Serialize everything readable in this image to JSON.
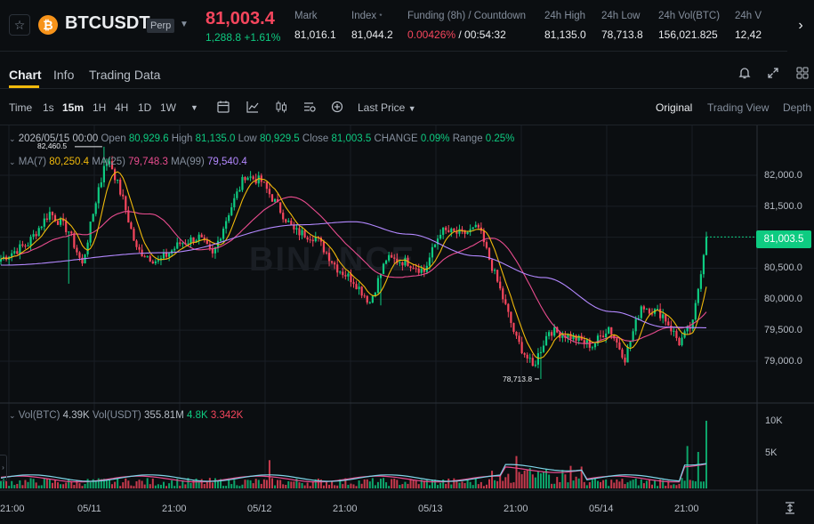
{
  "header": {
    "symbol": "BTCUSDT",
    "badge": "Perp",
    "last_price": "81,003.4",
    "change": "1,288.8 +1.61%",
    "stats": [
      {
        "label": "Mark",
        "value": "81,016.1"
      },
      {
        "label": "Index",
        "value": "81,044.2"
      },
      {
        "label": "Funding (8h) / Countdown",
        "value_rate": "0.00426%",
        "value_countdown": " / 00:54:32"
      },
      {
        "label": "24h High",
        "value": "81,135.0"
      },
      {
        "label": "24h Low",
        "value": "78,713.8"
      },
      {
        "label": "24h Vol(BTC)",
        "value": "156,021.825"
      },
      {
        "label": "24h V",
        "value": "12,42"
      }
    ]
  },
  "tabs": [
    "Chart",
    "Info",
    "Trading Data"
  ],
  "toolbar": {
    "time_label": "Time",
    "intervals": [
      "1s",
      "15m",
      "1H",
      "4H",
      "1D",
      "1W"
    ],
    "active_interval": "15m",
    "price_type": "Last Price",
    "views": [
      "Original",
      "Trading View",
      "Depth"
    ]
  },
  "legend": {
    "date": "2026/05/15 00:00",
    "open_label": "Open",
    "open": "80,929.6",
    "high_label": "High",
    "high": "81,135.0",
    "low_label": "Low",
    "low": "80,929.5",
    "close_label": "Close",
    "close": "81,003.5",
    "change_label": "CHANGE",
    "change": "0.09%",
    "range_label": "Range",
    "range": "0.25%",
    "ma7_label": "MA(7)",
    "ma7": "80,250.4",
    "ma25_label": "MA(25)",
    "ma25": "79,748.3",
    "ma99_label": "MA(99)",
    "ma99": "79,540.4",
    "vol_label": "Vol(BTC)",
    "vol_btc": "4.39K",
    "vol_usdt_label": "Vol(USDT)",
    "vol_usdt": "355.81M",
    "vol_ma1": "4.8K",
    "vol_ma2": "3.342K"
  },
  "price_axis": [
    "82,000.0",
    "81,500.0",
    "81,000.0",
    "80,500.0",
    "80,000.0",
    "79,500.0",
    "79,000.0"
  ],
  "current_price_tag": "81,003.5",
  "volume_axis": [
    "10K",
    "5K"
  ],
  "time_axis": [
    "21:00",
    "05/11",
    "21:00",
    "05/12",
    "21:00",
    "05/13",
    "21:00",
    "05/14",
    "21:00"
  ],
  "markers": {
    "high": "82,460.5",
    "low": "78,713.8"
  },
  "watermark": "BINANCE",
  "colors": {
    "up": "#0ecb81",
    "down": "#f6465d",
    "accent": "#f0b90b",
    "ma7": "#f0b90b",
    "ma25": "#e84c8e",
    "ma99": "#b388ff"
  },
  "chart_data": {
    "type": "candlestick",
    "interval": "15m",
    "price_range": [
      78700,
      82450
    ],
    "y_ticks": [
      79000,
      79500,
      80000,
      80500,
      81000,
      81500,
      82000
    ],
    "anchors": [
      [
        0,
        80650
      ],
      [
        10,
        80900
      ],
      [
        18,
        81400
      ],
      [
        25,
        81100
      ],
      [
        30,
        80550
      ],
      [
        36,
        81800
      ],
      [
        40,
        82250
      ],
      [
        45,
        81600
      ],
      [
        50,
        80800
      ],
      [
        58,
        80600
      ],
      [
        66,
        80900
      ],
      [
        73,
        81000
      ],
      [
        78,
        80700
      ],
      [
        84,
        81400
      ],
      [
        90,
        82000
      ],
      [
        96,
        81900
      ],
      [
        102,
        81500
      ],
      [
        108,
        81100
      ],
      [
        116,
        81000
      ],
      [
        124,
        80500
      ],
      [
        130,
        80300
      ],
      [
        136,
        79950
      ],
      [
        142,
        80650
      ],
      [
        150,
        80600
      ],
      [
        156,
        80450
      ],
      [
        162,
        81100
      ],
      [
        170,
        81050
      ],
      [
        176,
        81150
      ],
      [
        184,
        80150
      ],
      [
        190,
        79350
      ],
      [
        196,
        78900
      ],
      [
        202,
        79500
      ],
      [
        210,
        79400
      ],
      [
        218,
        79250
      ],
      [
        224,
        79550
      ],
      [
        230,
        79050
      ],
      [
        236,
        79900
      ],
      [
        244,
        79750
      ],
      [
        250,
        79300
      ],
      [
        255,
        79600
      ],
      [
        260,
        81050
      ]
    ],
    "ma99_points": [
      [
        0,
        80550
      ],
      [
        60,
        80750
      ],
      [
        110,
        81200
      ],
      [
        130,
        81250
      ],
      [
        150,
        81050
      ],
      [
        175,
        80700
      ],
      [
        200,
        80350
      ],
      [
        225,
        79800
      ],
      [
        245,
        79550
      ],
      [
        260,
        79540
      ]
    ]
  }
}
